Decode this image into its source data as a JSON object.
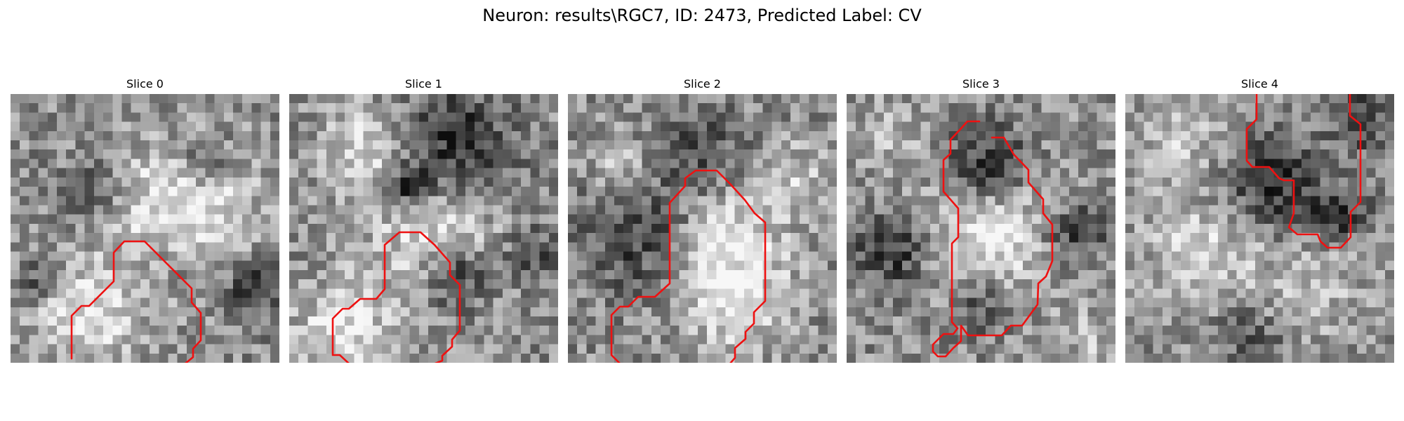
{
  "figure": {
    "title": "Neuron: results\\RGC7, ID: 2473, Predicted Label: CV",
    "contour_color": "#ee1111"
  },
  "slices": [
    {
      "label": "Slice 0"
    },
    {
      "label": "Slice 1"
    },
    {
      "label": "Slice 2"
    },
    {
      "label": "Slice 3"
    },
    {
      "label": "Slice 4"
    }
  ]
}
